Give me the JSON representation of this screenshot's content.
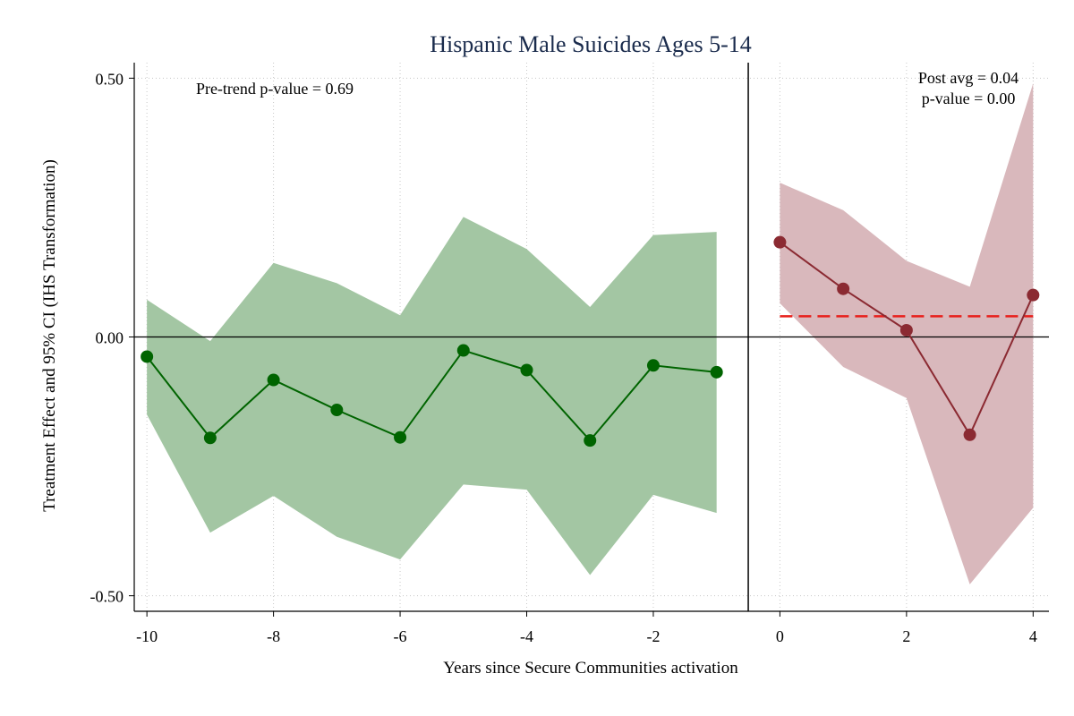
{
  "chart_data": {
    "type": "line",
    "title": "Hispanic Male Suicides Ages 5-14",
    "xlabel": "Years since Secure Communities activation",
    "ylabel": "Treatment Effect and 95% CI (IHS Transformation)",
    "xlim": [
      -10.2,
      4.25
    ],
    "ylim": [
      -0.53,
      0.53
    ],
    "x_ticks": [
      -10,
      -8,
      -6,
      -4,
      -2,
      0,
      2,
      4
    ],
    "x_tick_labels": [
      "-10",
      "-8",
      "-6",
      "-4",
      "-2",
      "0",
      "2",
      "4"
    ],
    "y_ticks": [
      0.5,
      0.0,
      -0.5
    ],
    "y_tick_labels": [
      "0.50",
      "0.00",
      "-0.50"
    ],
    "grid": true,
    "treatment_line_x": -0.5,
    "series": [
      {
        "group": "pre",
        "color": "#006400",
        "band_color": "#a3c6a3",
        "x": [
          -10,
          -9,
          -8,
          -7,
          -6,
          -5,
          -4,
          -3,
          -2,
          -1
        ],
        "values": [
          -0.038,
          -0.195,
          -0.083,
          -0.141,
          -0.194,
          -0.026,
          -0.064,
          -0.2,
          -0.055,
          -0.068
        ],
        "ci_lower": [
          -0.15,
          -0.378,
          -0.307,
          -0.386,
          -0.43,
          -0.285,
          -0.295,
          -0.46,
          -0.305,
          -0.34
        ],
        "ci_upper": [
          0.072,
          -0.008,
          0.143,
          0.104,
          0.042,
          0.232,
          0.17,
          0.058,
          0.197,
          0.203
        ]
      },
      {
        "group": "post",
        "color": "#8b2a32",
        "band_color": "#d9b8bc",
        "x": [
          0,
          1,
          2,
          3,
          4
        ],
        "values": [
          0.183,
          0.093,
          0.013,
          -0.189,
          0.081
        ],
        "ci_lower": [
          0.065,
          -0.058,
          -0.118,
          -0.478,
          -0.33
        ],
        "ci_upper": [
          0.298,
          0.245,
          0.147,
          0.097,
          0.49
        ]
      }
    ],
    "post_average": {
      "value": 0.04,
      "x_start": 0,
      "x_end": 4,
      "color": "#e8201c"
    },
    "annotations": {
      "pretrend": "Pre-trend p-value = 0.69",
      "post_avg": "Post avg = 0.04",
      "post_p": "p-value = 0.00"
    }
  }
}
